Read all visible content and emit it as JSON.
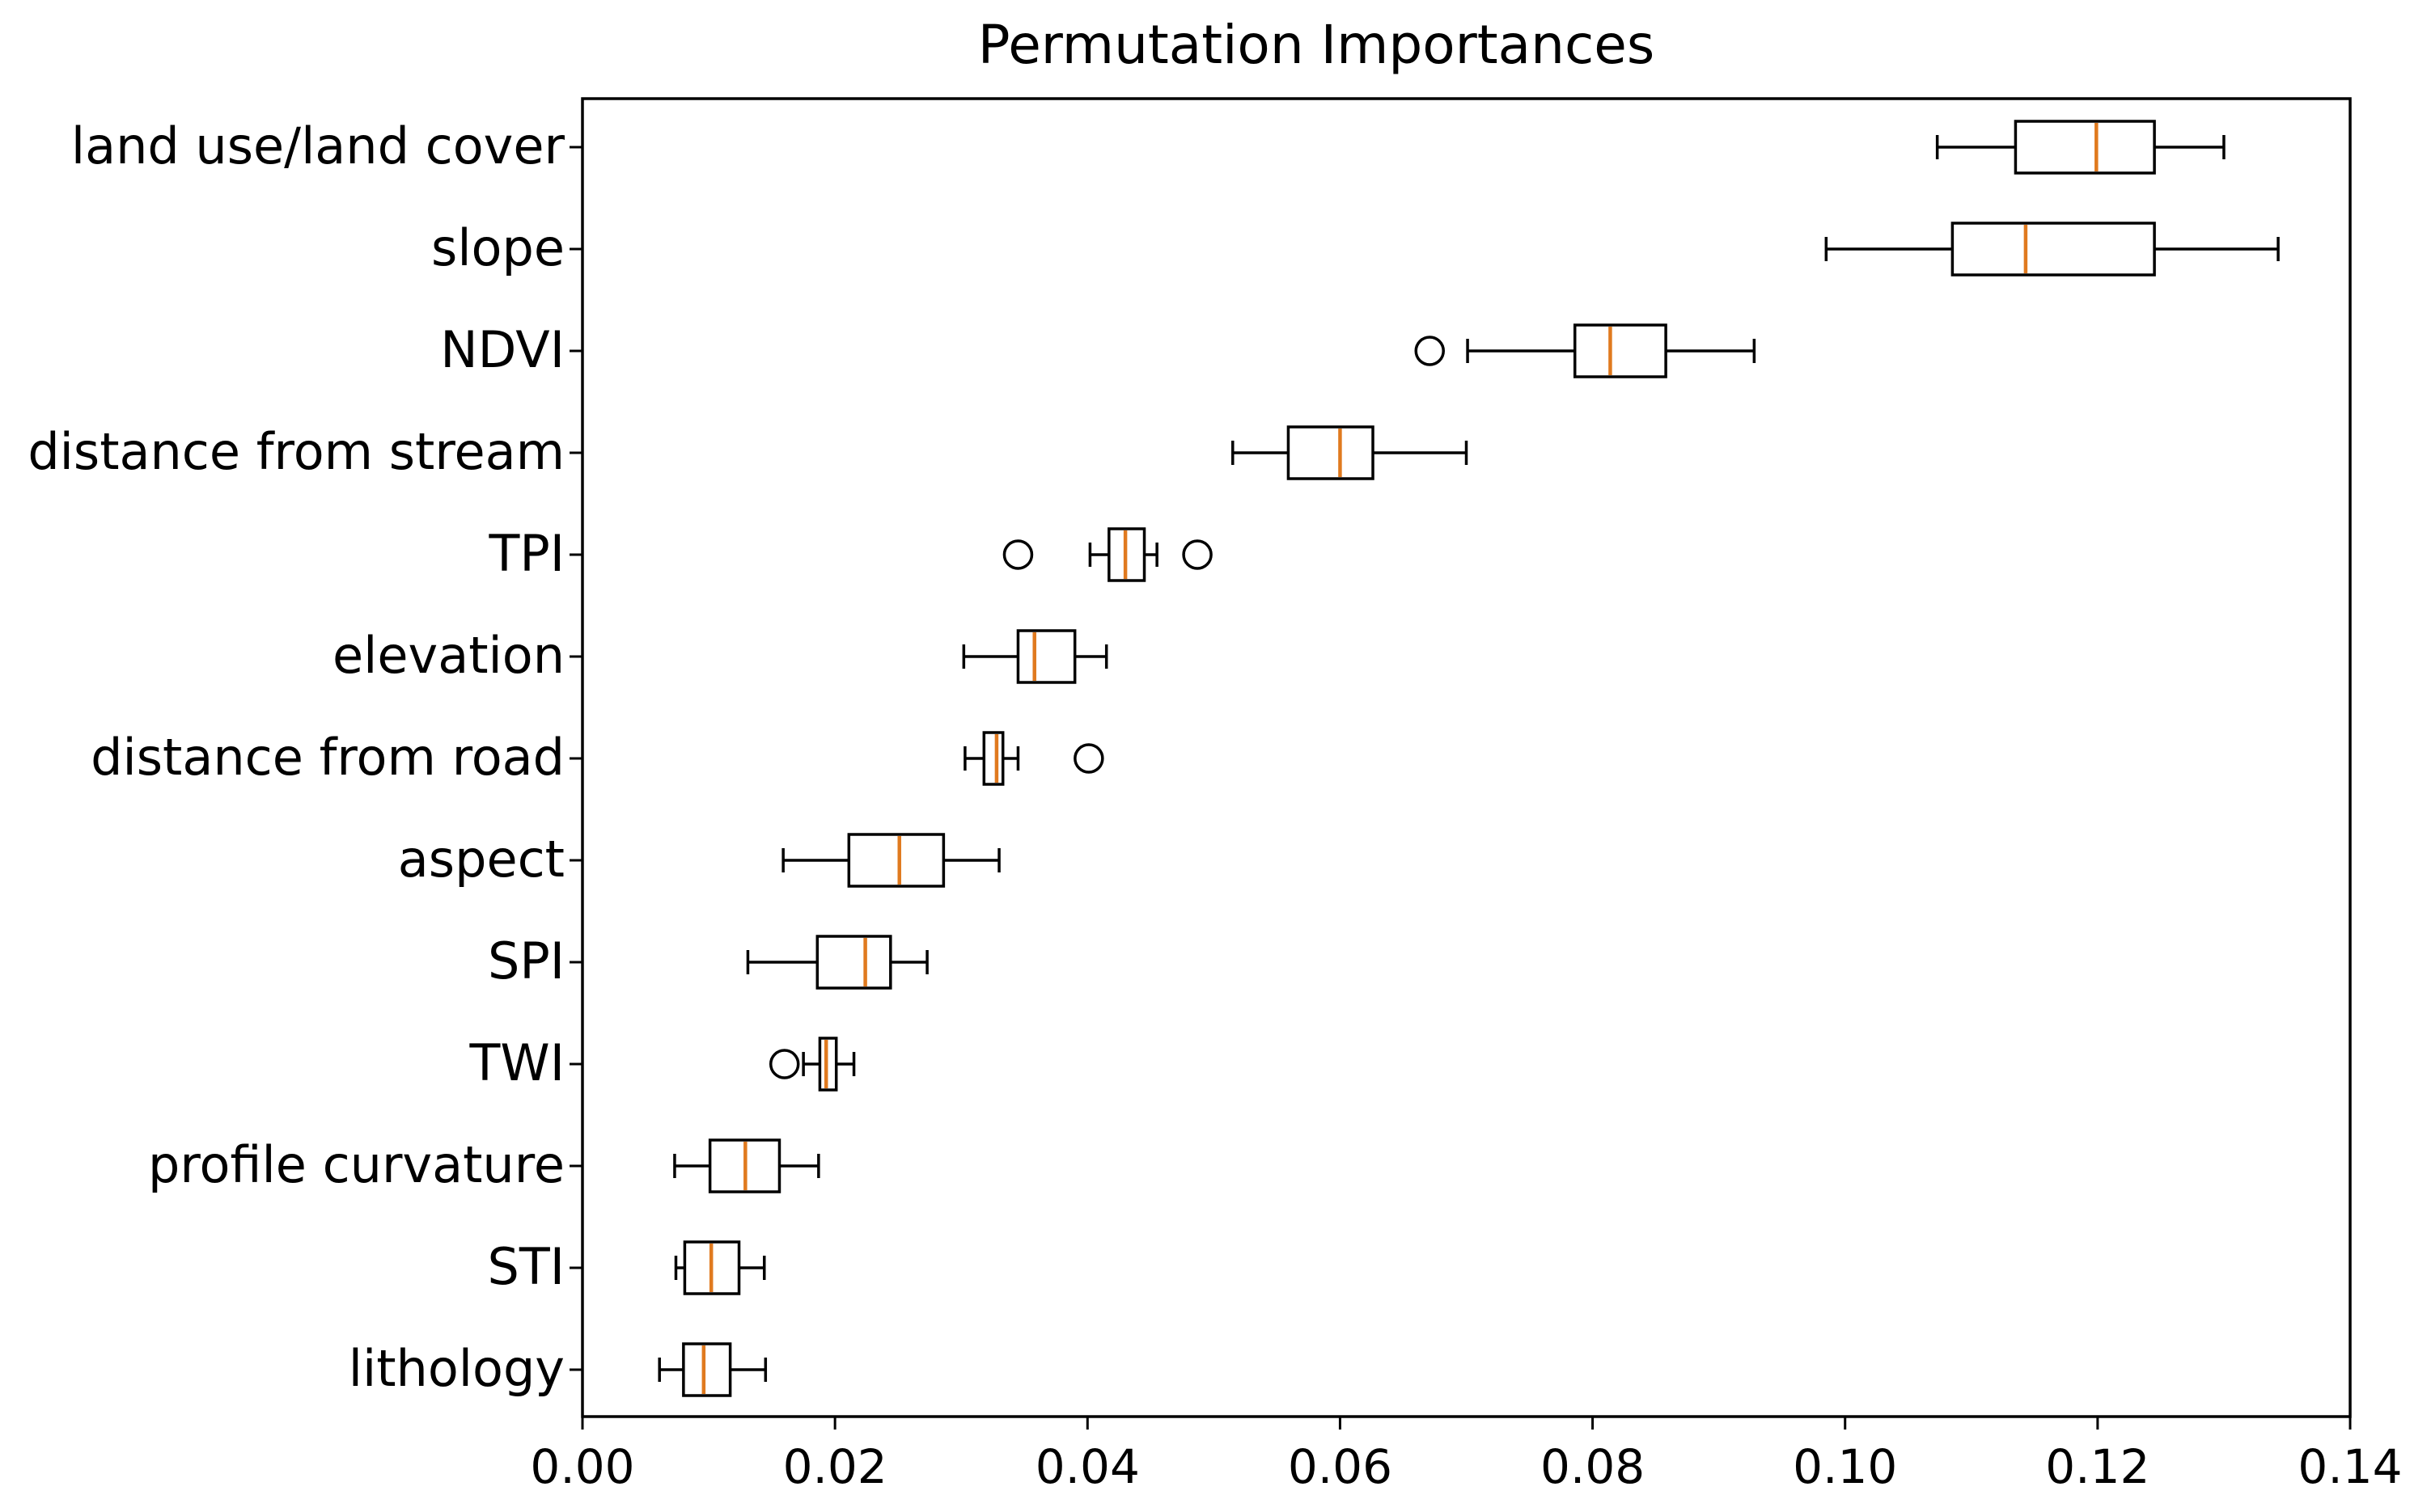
{
  "chart_data": {
    "type": "boxplot",
    "orientation": "horizontal",
    "title": "Permutation Importances",
    "xlabel": "",
    "ylabel": "",
    "xlim": [
      0.0,
      0.14
    ],
    "xticks": [
      "0.00",
      "0.02",
      "0.04",
      "0.06",
      "0.08",
      "0.10",
      "0.12",
      "0.14"
    ],
    "xtick_values": [
      0.0,
      0.02,
      0.04,
      0.06,
      0.08,
      0.1,
      0.12,
      0.14
    ],
    "median_color": "#e07a1f",
    "box_color": "#000000",
    "series": [
      {
        "name": "land use/land cover",
        "whisker_low": 0.1073,
        "q1": 0.1135,
        "median": 0.1199,
        "q3": 0.1245,
        "whisker_high": 0.13,
        "outliers": []
      },
      {
        "name": "slope",
        "whisker_low": 0.0985,
        "q1": 0.1085,
        "median": 0.1143,
        "q3": 0.1245,
        "whisker_high": 0.1343,
        "outliers": []
      },
      {
        "name": "NDVI",
        "whisker_low": 0.0701,
        "q1": 0.0786,
        "median": 0.0814,
        "q3": 0.0858,
        "whisker_high": 0.0928,
        "outliers": [
          0.0671
        ]
      },
      {
        "name": "distance from stream",
        "whisker_low": 0.0515,
        "q1": 0.0559,
        "median": 0.06,
        "q3": 0.0626,
        "whisker_high": 0.07,
        "outliers": []
      },
      {
        "name": "TPI",
        "whisker_low": 0.0402,
        "q1": 0.0417,
        "median": 0.043,
        "q3": 0.0445,
        "whisker_high": 0.0455,
        "outliers": [
          0.0345,
          0.0487
        ]
      },
      {
        "name": "elevation",
        "whisker_low": 0.0302,
        "q1": 0.0345,
        "median": 0.0358,
        "q3": 0.039,
        "whisker_high": 0.0415,
        "outliers": []
      },
      {
        "name": "distance from road",
        "whisker_low": 0.0303,
        "q1": 0.0318,
        "median": 0.0328,
        "q3": 0.0333,
        "whisker_high": 0.0345,
        "outliers": [
          0.0401
        ]
      },
      {
        "name": "aspect",
        "whisker_low": 0.0159,
        "q1": 0.0211,
        "median": 0.0251,
        "q3": 0.0286,
        "whisker_high": 0.033,
        "outliers": []
      },
      {
        "name": "SPI",
        "whisker_low": 0.0131,
        "q1": 0.0186,
        "median": 0.0224,
        "q3": 0.0244,
        "whisker_high": 0.0273,
        "outliers": []
      },
      {
        "name": "TWI",
        "whisker_low": 0.0175,
        "q1": 0.0188,
        "median": 0.0193,
        "q3": 0.0201,
        "whisker_high": 0.0215,
        "outliers": [
          0.016
        ]
      },
      {
        "name": "profile curvature",
        "whisker_low": 0.0073,
        "q1": 0.0101,
        "median": 0.0129,
        "q3": 0.0156,
        "whisker_high": 0.0187,
        "outliers": []
      },
      {
        "name": "STI",
        "whisker_low": 0.0074,
        "q1": 0.0081,
        "median": 0.0102,
        "q3": 0.0124,
        "whisker_high": 0.0144,
        "outliers": []
      },
      {
        "name": "lithology",
        "whisker_low": 0.0061,
        "q1": 0.008,
        "median": 0.0096,
        "q3": 0.0117,
        "whisker_high": 0.0145,
        "outliers": []
      }
    ]
  }
}
